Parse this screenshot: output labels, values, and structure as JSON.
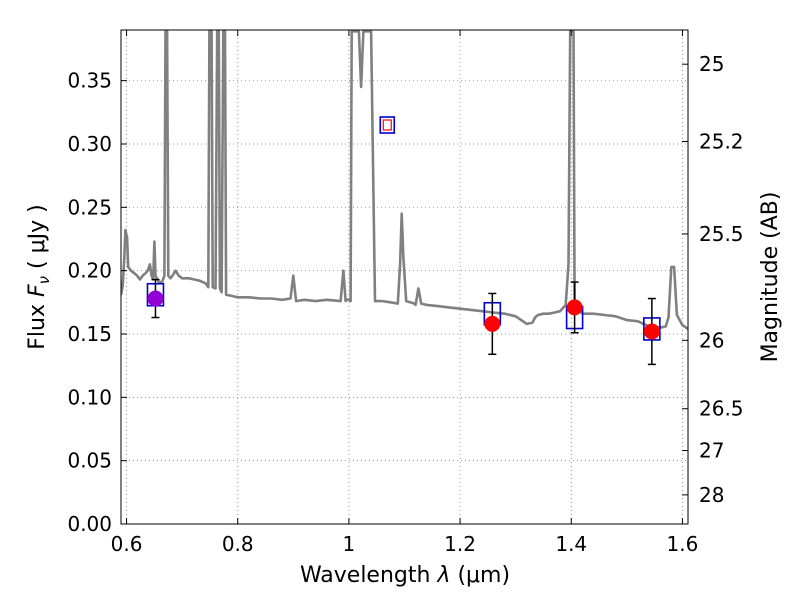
{
  "chart_data": {
    "type": "scatter",
    "xlabel_prefix": "Wavelength  ",
    "xlabel_symbol": "λ",
    "xlabel_unit": " (μm)",
    "ylabel_prefix": "Flux  ",
    "ylabel_symbol": "F",
    "ylabel_subscript": "ν",
    "ylabel_unit": "  ( μJy )",
    "y2label": "Magnitude (AB)",
    "xlim": [
      0.59,
      1.61
    ],
    "ylim": [
      0.0,
      0.39
    ],
    "grid": "dotted",
    "xticks": [
      0.6,
      0.8,
      1.0,
      1.2,
      1.4,
      1.6
    ],
    "xtick_labels": [
      "0.6",
      "0.8",
      "1",
      "1.2",
      "1.4",
      "1.6"
    ],
    "yticks": [
      0.0,
      0.05,
      0.1,
      0.15,
      0.2,
      0.25,
      0.3,
      0.35
    ],
    "ytick_labels": [
      "0.00",
      "0.05",
      "0.10",
      "0.15",
      "0.20",
      "0.25",
      "0.30",
      "0.35"
    ],
    "mag_ticks": [
      {
        "label": "25",
        "flux": 0.363
      },
      {
        "label": "25.2",
        "flux": 0.302
      },
      {
        "label": "25.5",
        "flux": 0.229
      },
      {
        "label": "26",
        "flux": 0.145
      },
      {
        "label": "26.5",
        "flux": 0.091
      },
      {
        "label": "27",
        "flux": 0.058
      },
      {
        "label": "28",
        "flux": 0.023
      }
    ],
    "colors": {
      "model": "#808080",
      "observed": "#ff0000",
      "observed_first": "#9400d3",
      "model_bands": "#0000cd",
      "errorbar": "#000000",
      "grid": "#9a9a9a"
    },
    "series": [
      {
        "kind": "model_spectrum",
        "points": [
          [
            0.59,
            0.181
          ],
          [
            0.593,
            0.188
          ],
          [
            0.596,
            0.21
          ],
          [
            0.598,
            0.232
          ],
          [
            0.601,
            0.226
          ],
          [
            0.603,
            0.203
          ],
          [
            0.608,
            0.2
          ],
          [
            0.614,
            0.198
          ],
          [
            0.619,
            0.196
          ],
          [
            0.624,
            0.193
          ],
          [
            0.629,
            0.196
          ],
          [
            0.634,
            0.198
          ],
          [
            0.638,
            0.2
          ],
          [
            0.642,
            0.205
          ],
          [
            0.645,
            0.196
          ],
          [
            0.648,
            0.193
          ],
          [
            0.65,
            0.223
          ],
          [
            0.652,
            0.196
          ],
          [
            0.658,
            0.191
          ],
          [
            0.664,
            0.191
          ],
          [
            0.668,
            0.196
          ],
          [
            0.67,
            0.389
          ],
          [
            0.673,
            0.389
          ],
          [
            0.675,
            0.196
          ],
          [
            0.679,
            0.194
          ],
          [
            0.684,
            0.197
          ],
          [
            0.688,
            0.2
          ],
          [
            0.694,
            0.196
          ],
          [
            0.7,
            0.194
          ],
          [
            0.712,
            0.194
          ],
          [
            0.722,
            0.193
          ],
          [
            0.732,
            0.192
          ],
          [
            0.742,
            0.19
          ],
          [
            0.747,
            0.187
          ],
          [
            0.749,
            0.389
          ],
          [
            0.753,
            0.389
          ],
          [
            0.755,
            0.187
          ],
          [
            0.76,
            0.186
          ],
          [
            0.763,
            0.389
          ],
          [
            0.766,
            0.389
          ],
          [
            0.768,
            0.186
          ],
          [
            0.771,
            0.183
          ],
          [
            0.774,
            0.389
          ],
          [
            0.777,
            0.389
          ],
          [
            0.779,
            0.181
          ],
          [
            0.79,
            0.18
          ],
          [
            0.8,
            0.179
          ],
          [
            0.82,
            0.179
          ],
          [
            0.84,
            0.178
          ],
          [
            0.86,
            0.178
          ],
          [
            0.88,
            0.177
          ],
          [
            0.895,
            0.178
          ],
          [
            0.9,
            0.196
          ],
          [
            0.905,
            0.176
          ],
          [
            0.92,
            0.177
          ],
          [
            0.94,
            0.176
          ],
          [
            0.96,
            0.177
          ],
          [
            0.985,
            0.176
          ],
          [
            0.99,
            0.2
          ],
          [
            0.994,
            0.176
          ],
          [
            0.995,
            0.177
          ],
          [
            1.0,
            0.177
          ],
          [
            1.003,
            0.176
          ],
          [
            1.005,
            0.389
          ],
          [
            1.018,
            0.389
          ],
          [
            1.022,
            0.345
          ],
          [
            1.026,
            0.389
          ],
          [
            1.04,
            0.389
          ],
          [
            1.047,
            0.176
          ],
          [
            1.06,
            0.176
          ],
          [
            1.075,
            0.175
          ],
          [
            1.088,
            0.174
          ],
          [
            1.092,
            0.205
          ],
          [
            1.095,
            0.245
          ],
          [
            1.098,
            0.21
          ],
          [
            1.103,
            0.176
          ],
          [
            1.11,
            0.175
          ],
          [
            1.118,
            0.174
          ],
          [
            1.12,
            0.173
          ],
          [
            1.125,
            0.186
          ],
          [
            1.13,
            0.174
          ],
          [
            1.14,
            0.173
          ],
          [
            1.16,
            0.172
          ],
          [
            1.18,
            0.171
          ],
          [
            1.2,
            0.17
          ],
          [
            1.22,
            0.169
          ],
          [
            1.24,
            0.168
          ],
          [
            1.26,
            0.167
          ],
          [
            1.28,
            0.166
          ],
          [
            1.3,
            0.164
          ],
          [
            1.31,
            0.161
          ],
          [
            1.32,
            0.158
          ],
          [
            1.33,
            0.159
          ],
          [
            1.335,
            0.163
          ],
          [
            1.34,
            0.165
          ],
          [
            1.35,
            0.166
          ],
          [
            1.36,
            0.166
          ],
          [
            1.37,
            0.167
          ],
          [
            1.38,
            0.168
          ],
          [
            1.39,
            0.173
          ],
          [
            1.395,
            0.205
          ],
          [
            1.398,
            0.389
          ],
          [
            1.404,
            0.389
          ],
          [
            1.406,
            0.172
          ],
          [
            1.42,
            0.166
          ],
          [
            1.44,
            0.166
          ],
          [
            1.46,
            0.165
          ],
          [
            1.48,
            0.164
          ],
          [
            1.5,
            0.161
          ],
          [
            1.52,
            0.16
          ],
          [
            1.54,
            0.156
          ],
          [
            1.56,
            0.155
          ],
          [
            1.57,
            0.156
          ],
          [
            1.575,
            0.163
          ],
          [
            1.58,
            0.203
          ],
          [
            1.585,
            0.203
          ],
          [
            1.59,
            0.165
          ],
          [
            1.6,
            0.157
          ],
          [
            1.61,
            0.154
          ]
        ]
      },
      {
        "kind": "observed",
        "points": [
          {
            "x": 0.652,
            "y": 0.178,
            "err": 0.015
          },
          {
            "x": 1.258,
            "y": 0.158,
            "err": 0.024
          },
          {
            "x": 1.406,
            "y": 0.171,
            "err": 0.02
          },
          {
            "x": 1.545,
            "y": 0.152,
            "err": 0.026
          }
        ]
      },
      {
        "kind": "model_bands",
        "points": [
          {
            "x": 0.652,
            "y": 0.181
          },
          {
            "x": 1.069,
            "y": 0.315
          },
          {
            "x": 1.258,
            "y": 0.166
          },
          {
            "x": 1.406,
            "y": 0.163
          },
          {
            "x": 1.545,
            "y": 0.154
          }
        ]
      }
    ]
  }
}
